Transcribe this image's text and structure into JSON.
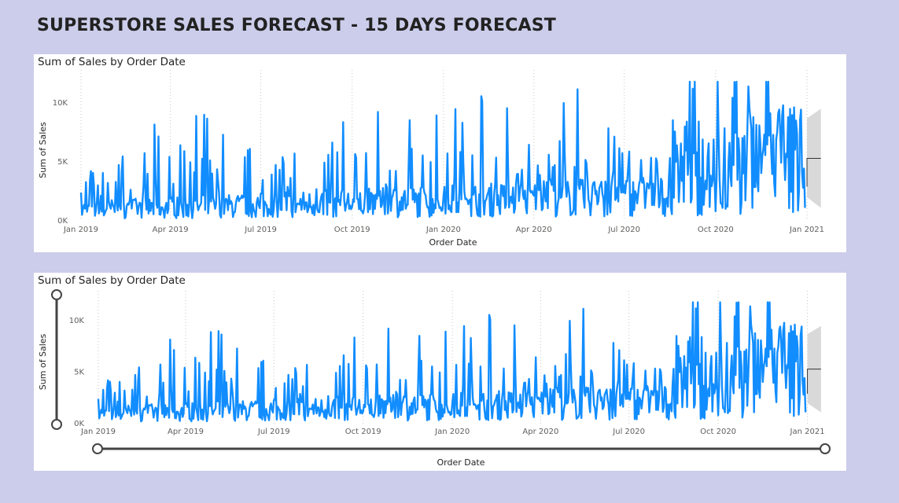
{
  "page": {
    "title": "SUPERSTORE SALES FORECAST - 15 DAYS FORECAST"
  },
  "chart_data": [
    {
      "type": "line",
      "title": "Sum of Sales by Order Date",
      "xlabel": "Order Date",
      "ylabel": "Sum of Sales",
      "x_ticks": [
        "Jan 2019",
        "Apr 2019",
        "Jul 2019",
        "Oct 2019",
        "Jan 2020",
        "Apr 2020",
        "Jul 2020",
        "Oct 2020",
        "Jan 2021"
      ],
      "y_ticks": [
        "0K",
        "5K",
        "10K"
      ],
      "ylim": [
        0,
        12000
      ],
      "xlim": [
        "2019-01-01",
        "2021-01-20"
      ],
      "grid": "vertical-dotted",
      "series_color": "#118dff",
      "forecast": {
        "start": "2021-01-01",
        "end": "2021-01-15",
        "value": 5300,
        "lower": 1100,
        "upper": 9500,
        "band_color": "#d9d9d9",
        "line_color": "#333333"
      },
      "series": [
        {
          "x_start": "2019-01-01",
          "step_days": 1,
          "seed": 7
        }
      ]
    },
    {
      "type": "line",
      "title": "Sum of Sales by Order Date",
      "xlabel": "Order Date",
      "ylabel": "Sum of Sales",
      "x_ticks": [
        "Jan 2019",
        "Apr 2019",
        "Jul 2019",
        "Oct 2019",
        "Jan 2020",
        "Apr 2020",
        "Jul 2020",
        "Oct 2020",
        "Jan 2021"
      ],
      "y_ticks": [
        "0K",
        "5K",
        "10K"
      ],
      "ylim": [
        0,
        12000
      ],
      "xlim": [
        "2019-01-01",
        "2021-01-20"
      ],
      "grid": "vertical-dotted",
      "series_color": "#118dff",
      "zoom_sliders": true,
      "forecast": {
        "start": "2021-01-01",
        "end": "2021-01-15",
        "value": 5300,
        "lower": 1100,
        "upper": 9500,
        "band_color": "#d9d9d9",
        "line_color": "#333333"
      },
      "series": [
        {
          "x_start": "2019-01-01",
          "step_days": 1,
          "seed": 7
        }
      ]
    }
  ]
}
